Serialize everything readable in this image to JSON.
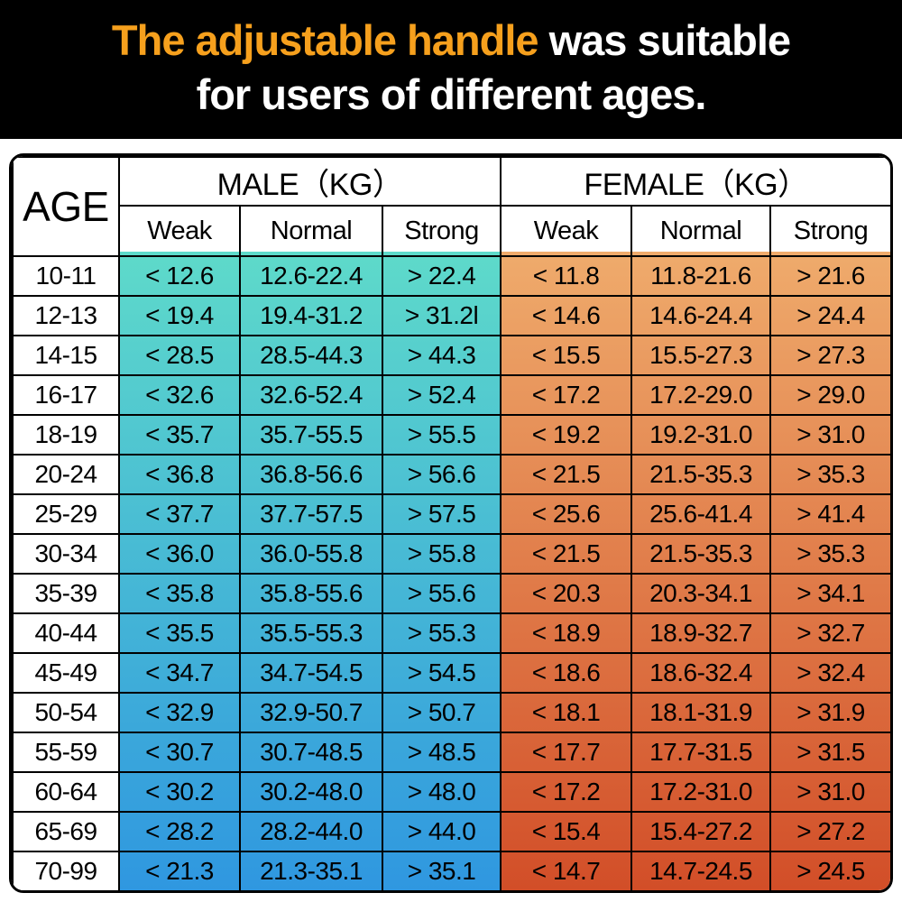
{
  "banner": {
    "highlight": "The adjustable handle",
    "rest": " was suitable",
    "line2": "for users of different ages.",
    "highlight_color": "#F6A01D",
    "background_color": "#000000",
    "text_color": "#FFFFFF"
  },
  "table": {
    "age_header": "AGE",
    "male_header": "MALE（KG）",
    "female_header": "FEMALE（KG）",
    "sub_headers": [
      "Weak",
      "Normal",
      "Strong"
    ],
    "colors": {
      "male_gradient_top": "#5EDACA",
      "male_gradient_bottom": "#2F97E0",
      "female_gradient_top": "#EFAB6C",
      "female_gradient_bottom": "#D24E28",
      "grid_line": "#000000",
      "header_background": "#FFFFFF"
    }
  },
  "chart_data": {
    "type": "table",
    "title": "The adjustable handle was suitable for users of different ages.",
    "columns": [
      "AGE",
      "MALE (KG) Weak",
      "MALE (KG) Normal",
      "MALE (KG) Strong",
      "FEMALE (KG) Weak",
      "FEMALE (KG) Normal",
      "FEMALE (KG) Strong"
    ],
    "rows": [
      {
        "age": "10-11",
        "male": [
          "< 12.6",
          "12.6-22.4",
          "> 22.4"
        ],
        "female": [
          "< 11.8",
          "11.8-21.6",
          "> 21.6"
        ]
      },
      {
        "age": "12-13",
        "male": [
          "< 19.4",
          "19.4-31.2",
          "> 31.2l"
        ],
        "female": [
          "< 14.6",
          "14.6-24.4",
          "> 24.4"
        ]
      },
      {
        "age": "14-15",
        "male": [
          "< 28.5",
          "28.5-44.3",
          "> 44.3"
        ],
        "female": [
          "< 15.5",
          "15.5-27.3",
          "> 27.3"
        ]
      },
      {
        "age": "16-17",
        "male": [
          "< 32.6",
          "32.6-52.4",
          "> 52.4"
        ],
        "female": [
          "< 17.2",
          "17.2-29.0",
          "> 29.0"
        ]
      },
      {
        "age": "18-19",
        "male": [
          "< 35.7",
          "35.7-55.5",
          "> 55.5"
        ],
        "female": [
          "< 19.2",
          "19.2-31.0",
          "> 31.0"
        ]
      },
      {
        "age": "20-24",
        "male": [
          "< 36.8",
          "36.8-56.6",
          "> 56.6"
        ],
        "female": [
          "< 21.5",
          "21.5-35.3",
          "> 35.3"
        ]
      },
      {
        "age": "25-29",
        "male": [
          "< 37.7",
          "37.7-57.5",
          "> 57.5"
        ],
        "female": [
          "< 25.6",
          "25.6-41.4",
          "> 41.4"
        ]
      },
      {
        "age": "30-34",
        "male": [
          "< 36.0",
          "36.0-55.8",
          "> 55.8"
        ],
        "female": [
          "< 21.5",
          "21.5-35.3",
          "> 35.3"
        ]
      },
      {
        "age": "35-39",
        "male": [
          "< 35.8",
          "35.8-55.6",
          "> 55.6"
        ],
        "female": [
          "< 20.3",
          "20.3-34.1",
          "> 34.1"
        ]
      },
      {
        "age": "40-44",
        "male": [
          "< 35.5",
          "35.5-55.3",
          "> 55.3"
        ],
        "female": [
          "< 18.9",
          "18.9-32.7",
          "> 32.7"
        ]
      },
      {
        "age": "45-49",
        "male": [
          "< 34.7",
          "34.7-54.5",
          "> 54.5"
        ],
        "female": [
          "< 18.6",
          "18.6-32.4",
          "> 32.4"
        ]
      },
      {
        "age": "50-54",
        "male": [
          "< 32.9",
          "32.9-50.7",
          "> 50.7"
        ],
        "female": [
          "< 18.1",
          "18.1-31.9",
          "> 31.9"
        ]
      },
      {
        "age": "55-59",
        "male": [
          "< 30.7",
          "30.7-48.5",
          "> 48.5"
        ],
        "female": [
          "< 17.7",
          "17.7-31.5",
          "> 31.5"
        ]
      },
      {
        "age": "60-64",
        "male": [
          "< 30.2",
          "30.2-48.0",
          "> 48.0"
        ],
        "female": [
          "< 17.2",
          "17.2-31.0",
          "> 31.0"
        ]
      },
      {
        "age": "65-69",
        "male": [
          "< 28.2",
          "28.2-44.0",
          "> 44.0"
        ],
        "female": [
          "< 15.4",
          "15.4-27.2",
          "> 27.2"
        ]
      },
      {
        "age": "70-99",
        "male": [
          "< 21.3",
          "21.3-35.1",
          "> 35.1"
        ],
        "female": [
          "< 14.7",
          "14.7-24.5",
          "> 24.5"
        ]
      }
    ]
  }
}
